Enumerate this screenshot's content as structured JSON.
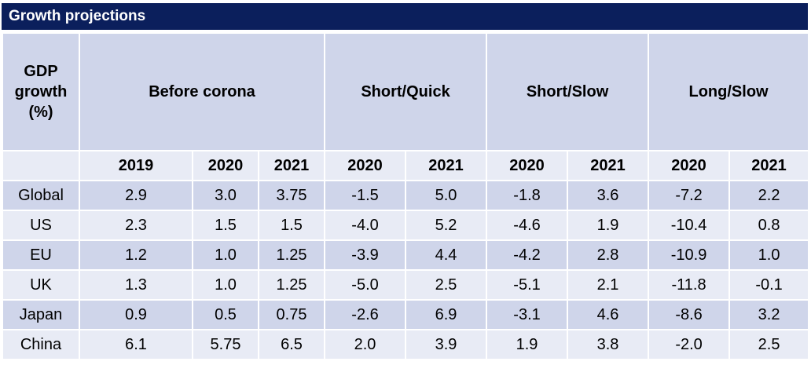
{
  "title": "Growth projections",
  "header": {
    "corner": [
      "GDP",
      "growth",
      "(%)"
    ],
    "groups": [
      "Before corona",
      "Short/Quick",
      "Short/Slow",
      "Long/Slow"
    ],
    "years": [
      "2019",
      "2020",
      "2021",
      "2020",
      "2021",
      "2020",
      "2021",
      "2020",
      "2021"
    ]
  },
  "rows": [
    {
      "label": "Global",
      "values": [
        "2.9",
        "3.0",
        "3.75",
        "-1.5",
        "5.0",
        "-1.8",
        "3.6",
        "-7.2",
        "2.2"
      ]
    },
    {
      "label": "US",
      "values": [
        "2.3",
        "1.5",
        "1.5",
        "-4.0",
        "5.2",
        "-4.6",
        "1.9",
        "-10.4",
        "0.8"
      ]
    },
    {
      "label": "EU",
      "values": [
        "1.2",
        "1.0",
        "1.25",
        "-3.9",
        "4.4",
        "-4.2",
        "2.8",
        "-10.9",
        "1.0"
      ]
    },
    {
      "label": "UK",
      "values": [
        "1.3",
        "1.0",
        "1.25",
        "-5.0",
        "2.5",
        "-5.1",
        "2.1",
        "-11.8",
        "-0.1"
      ]
    },
    {
      "label": "Japan",
      "values": [
        "0.9",
        "0.5",
        "0.75",
        "-2.6",
        "6.9",
        "-3.1",
        "4.6",
        "-8.6",
        "3.2"
      ]
    },
    {
      "label": "China",
      "values": [
        "6.1",
        "5.75",
        "6.5",
        "2.0",
        "3.9",
        "1.9",
        "3.8",
        "-2.0",
        "2.5"
      ]
    }
  ]
}
